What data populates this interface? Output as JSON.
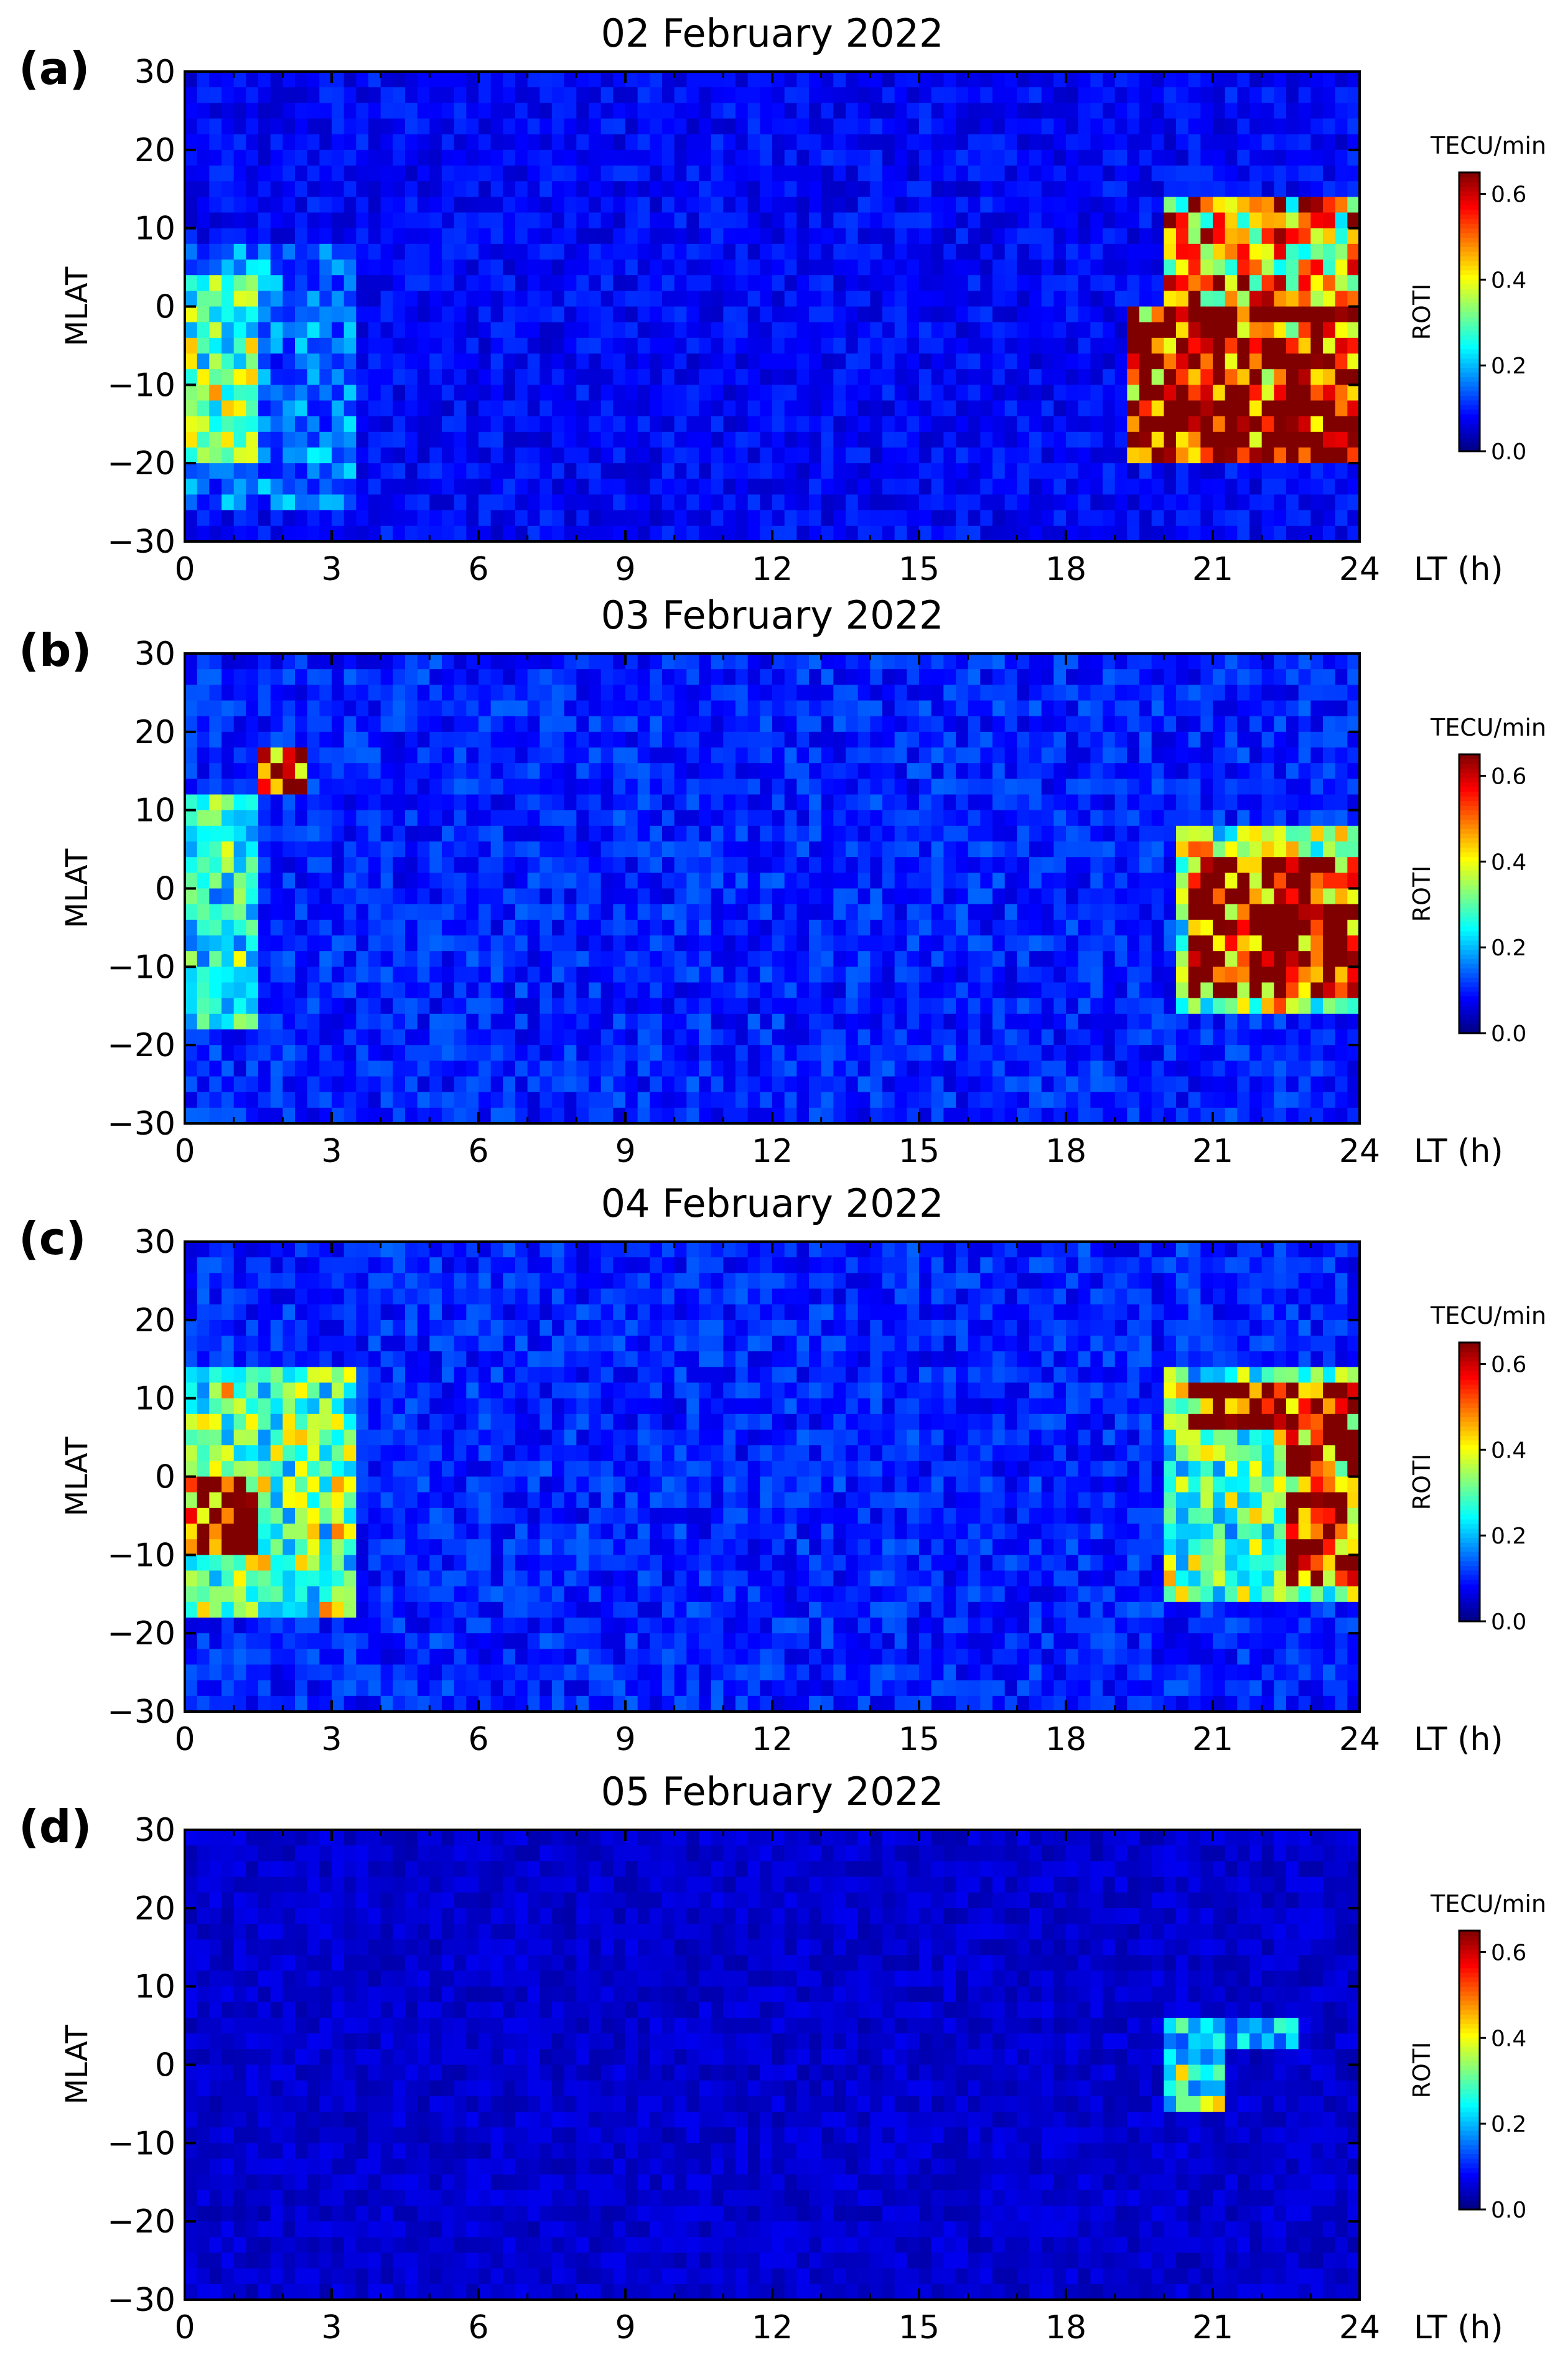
{
  "chart_data": [
    {
      "type": "heatmap",
      "panel_label": "(a)",
      "title": "02 February 2022",
      "ylabel": "MLAT",
      "xlabel": "LT (h)",
      "colorbar_label": "ROTI",
      "colorbar_unit": "TECU/min",
      "x_ticks": [
        0,
        3,
        6,
        9,
        12,
        15,
        18,
        21,
        24
      ],
      "y_ticks": [
        30,
        20,
        10,
        0,
        -10,
        -20,
        -30
      ],
      "xlim": [
        0,
        24
      ],
      "ylim": [
        -30,
        30
      ],
      "colorbar_ticks": [
        0.0,
        0.2,
        0.4,
        0.6
      ],
      "colorbar_range": [
        0,
        0.65
      ],
      "colormap": "jet",
      "grid": false,
      "regions": [
        {
          "lt": [
            19.2,
            24.0
          ],
          "mlat": [
            -19,
            0
          ],
          "roti": 0.65
        },
        {
          "lt": [
            20.0,
            24.0
          ],
          "mlat": [
            0,
            13
          ],
          "roti": 0.45
        },
        {
          "lt": [
            0.0,
            1.5
          ],
          "mlat": [
            -20,
            4
          ],
          "roti": 0.3
        },
        {
          "lt": [
            0.0,
            3.5
          ],
          "mlat": [
            -25,
            8
          ],
          "roti": 0.15
        }
      ],
      "background_roti": 0.08
    },
    {
      "type": "heatmap",
      "panel_label": "(b)",
      "title": "03 February 2022",
      "ylabel": "MLAT",
      "xlabel": "LT (h)",
      "colorbar_label": "ROTI",
      "colorbar_unit": "TECU/min",
      "x_ticks": [
        0,
        3,
        6,
        9,
        12,
        15,
        18,
        21,
        24
      ],
      "y_ticks": [
        30,
        20,
        10,
        0,
        -10,
        -20,
        -30
      ],
      "xlim": [
        0,
        24
      ],
      "ylim": [
        -30,
        30
      ],
      "colorbar_ticks": [
        0.0,
        0.2,
        0.4,
        0.6
      ],
      "colorbar_range": [
        0,
        0.65
      ],
      "colormap": "jet",
      "grid": false,
      "regions": [
        {
          "lt": [
            20.5,
            24.0
          ],
          "mlat": [
            -14,
            3
          ],
          "roti": 0.65
        },
        {
          "lt": [
            20.3,
            24.0
          ],
          "mlat": [
            -16,
            8
          ],
          "roti": 0.35
        },
        {
          "lt": [
            1.5,
            2.6
          ],
          "mlat": [
            13,
            17
          ],
          "roti": 0.6
        },
        {
          "lt": [
            0.0,
            1.5
          ],
          "mlat": [
            -18,
            12
          ],
          "roti": 0.25
        }
      ],
      "background_roti": 0.1
    },
    {
      "type": "heatmap",
      "panel_label": "(c)",
      "title": "04 February 2022",
      "ylabel": "MLAT",
      "xlabel": "LT (h)",
      "colorbar_label": "ROTI",
      "colorbar_unit": "TECU/min",
      "x_ticks": [
        0,
        3,
        6,
        9,
        12,
        15,
        18,
        21,
        24
      ],
      "y_ticks": [
        30,
        20,
        10,
        0,
        -10,
        -20,
        -30
      ],
      "xlim": [
        0,
        24
      ],
      "ylim": [
        -30,
        30
      ],
      "colorbar_ticks": [
        0.0,
        0.2,
        0.4,
        0.6
      ],
      "colorbar_range": [
        0,
        0.65
      ],
      "colormap": "jet",
      "grid": false,
      "regions": [
        {
          "lt": [
            20.5,
            24.0
          ],
          "mlat": [
            7,
            12
          ],
          "roti": 0.62
        },
        {
          "lt": [
            22.5,
            24.0
          ],
          "mlat": [
            -14,
            7
          ],
          "roti": 0.6
        },
        {
          "lt": [
            20.0,
            24.0
          ],
          "mlat": [
            -16,
            14
          ],
          "roti": 0.3
        },
        {
          "lt": [
            0.0,
            1.5
          ],
          "mlat": [
            -10,
            0
          ],
          "roti": 0.62
        },
        {
          "lt": [
            0.0,
            3.5
          ],
          "mlat": [
            -18,
            13
          ],
          "roti": 0.3
        }
      ],
      "background_roti": 0.1
    },
    {
      "type": "heatmap",
      "panel_label": "(d)",
      "title": "05 February 2022",
      "ylabel": "MLAT",
      "xlabel": "LT (h)",
      "colorbar_label": "ROTI",
      "colorbar_unit": "TECU/min",
      "x_ticks": [
        0,
        3,
        6,
        9,
        12,
        15,
        18,
        21,
        24
      ],
      "y_ticks": [
        30,
        20,
        10,
        0,
        -10,
        -20,
        -30
      ],
      "xlim": [
        0,
        24
      ],
      "ylim": [
        -30,
        30
      ],
      "colorbar_ticks": [
        0.0,
        0.2,
        0.4,
        0.6
      ],
      "colorbar_range": [
        0,
        0.65
      ],
      "colormap": "jet",
      "grid": false,
      "regions": [
        {
          "lt": [
            20.0,
            21.3
          ],
          "mlat": [
            -5,
            2
          ],
          "roti": 0.28
        },
        {
          "lt": [
            20.0,
            22.8
          ],
          "mlat": [
            2,
            5
          ],
          "roti": 0.2
        }
      ],
      "background_roti": 0.05
    }
  ]
}
